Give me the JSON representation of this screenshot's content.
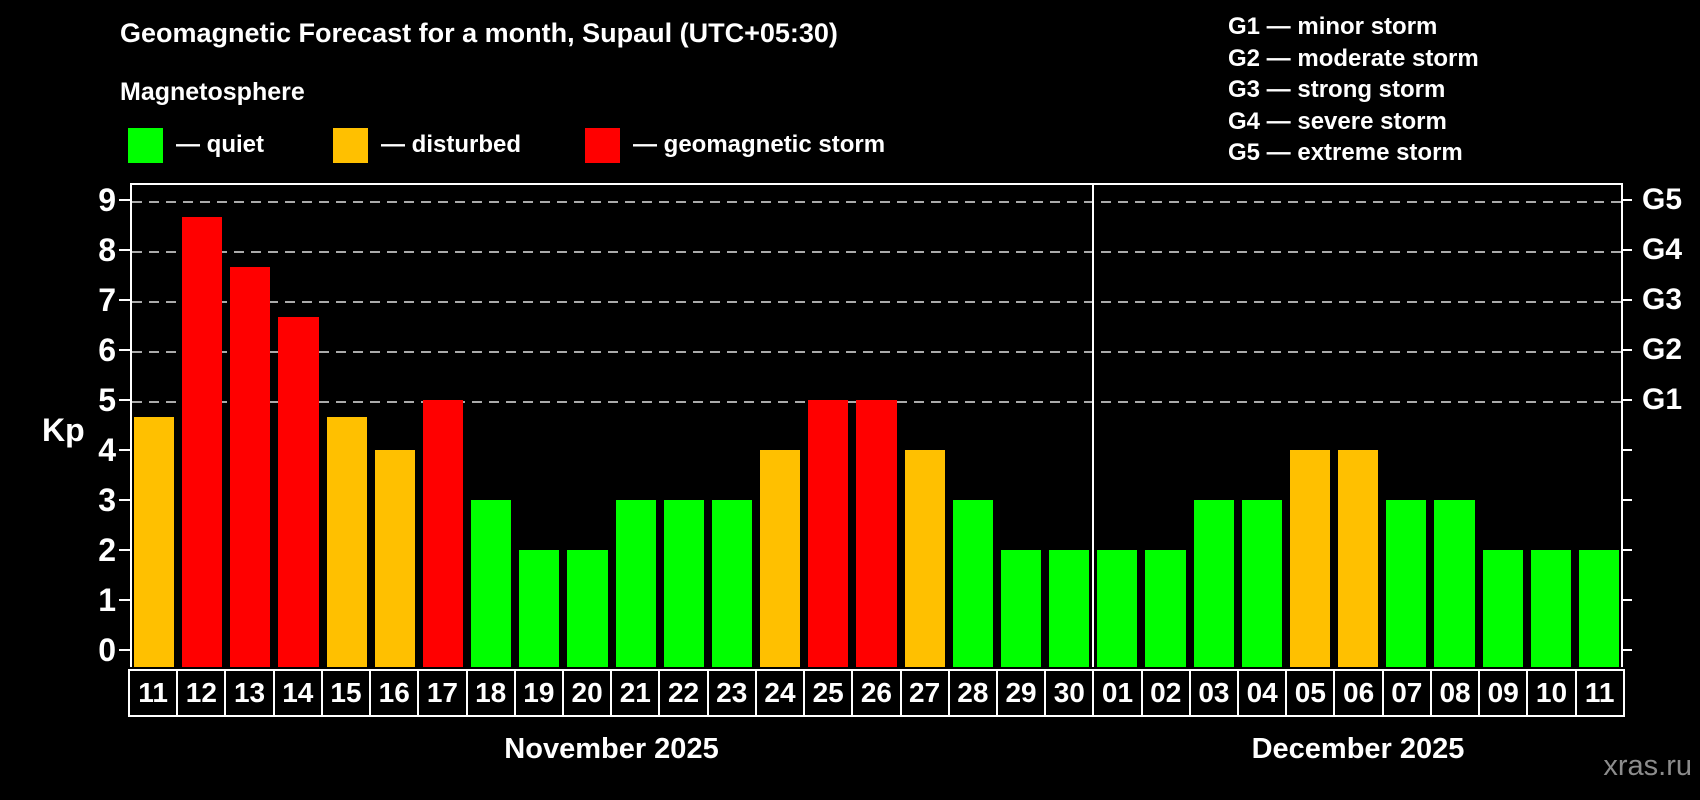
{
  "title": "Geomagnetic Forecast for a month, Supaul (UTC+05:30)",
  "subtitle": "Magnetosphere",
  "legend": {
    "quiet_label": "— quiet",
    "disturbed_label": "— disturbed",
    "storm_label": "— geomagnetic storm"
  },
  "g_legend_lines": [
    "G1 — minor storm",
    "G2 — moderate storm",
    "G3 — strong storm",
    "G4 — severe storm",
    "G5 — extreme storm"
  ],
  "colors": {
    "quiet": "#00ff00",
    "disturbed": "#ffc000",
    "storm": "#ff0000",
    "gridline": "#aaaaaa",
    "axis": "#ffffff"
  },
  "watermark": "xras.ru",
  "chart_data": {
    "type": "bar",
    "ylabel": "Kp",
    "ylim": [
      0,
      9
    ],
    "y_ticks": [
      0,
      1,
      2,
      3,
      4,
      5,
      6,
      7,
      8,
      9
    ],
    "g_scale": [
      {
        "label": "G1",
        "kp": 5
      },
      {
        "label": "G2",
        "kp": 6
      },
      {
        "label": "G3",
        "kp": 7
      },
      {
        "label": "G4",
        "kp": 8
      },
      {
        "label": "G5",
        "kp": 9
      }
    ],
    "grid_levels": [
      5,
      6,
      7,
      8,
      9
    ],
    "months": [
      {
        "label": "November 2025",
        "days": 20
      },
      {
        "label": "December 2025",
        "days": 11
      }
    ],
    "categories": [
      "11",
      "12",
      "13",
      "14",
      "15",
      "16",
      "17",
      "18",
      "19",
      "20",
      "21",
      "22",
      "23",
      "24",
      "25",
      "26",
      "27",
      "28",
      "29",
      "30",
      "01",
      "02",
      "03",
      "04",
      "05",
      "06",
      "07",
      "08",
      "09",
      "10",
      "11"
    ],
    "values": [
      4.67,
      8.67,
      7.67,
      6.67,
      4.67,
      4.0,
      5.0,
      3,
      2,
      2,
      3,
      3,
      3,
      4,
      5,
      5,
      4,
      3,
      2,
      2,
      2,
      2,
      3,
      3,
      4,
      4,
      3,
      3,
      2,
      2,
      2
    ],
    "statuses": [
      "disturbed",
      "storm",
      "storm",
      "storm",
      "disturbed",
      "disturbed",
      "storm",
      "quiet",
      "quiet",
      "quiet",
      "quiet",
      "quiet",
      "quiet",
      "disturbed",
      "storm",
      "storm",
      "disturbed",
      "quiet",
      "quiet",
      "quiet",
      "quiet",
      "quiet",
      "quiet",
      "quiet",
      "disturbed",
      "disturbed",
      "quiet",
      "quiet",
      "quiet",
      "quiet",
      "quiet"
    ]
  }
}
